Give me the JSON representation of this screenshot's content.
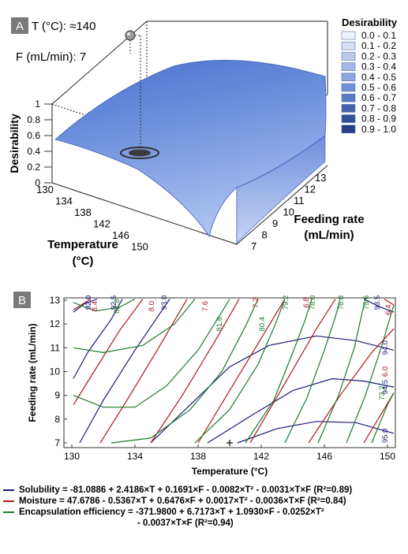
{
  "chart_data": [
    {
      "type": "surface",
      "panel_label": "A",
      "annotation": {
        "temp_label": "T (°C): ≈140",
        "feed_label": "F (mL/min): 7"
      },
      "xlabel": "Temperature\n(°C)",
      "ylabel": "Feeding rate\n(mL/min)",
      "zlabel": "Desirability",
      "x_ticks": [
        "130",
        "134",
        "138",
        "142",
        "146",
        "150"
      ],
      "y_ticks": [
        "7",
        "8",
        "9",
        "10",
        "11",
        "12",
        "13"
      ],
      "z_ticks": [
        "0",
        "0.2",
        "0.4",
        "0.6",
        "0.8",
        "1"
      ],
      "legend": {
        "title": "Desirability",
        "entries": [
          "0.0 - 0.1",
          "0.1 - 0.2",
          "0.2 - 0.3",
          "0.3 - 0.4",
          "0.4 - 0.5",
          "0.5 - 0.6",
          "0.6 - 0.7",
          "0.7 - 0.8",
          "0.8 - 0.9",
          "0.9 - 1.0"
        ],
        "colors": [
          "#eef2fb",
          "#d6e0f4",
          "#bccaee",
          "#a4b8e8",
          "#8ca4e0",
          "#7190d6",
          "#5a78c4",
          "#4662ae",
          "#334f97",
          "#243f82"
        ]
      },
      "optimum": {
        "x": 140,
        "y": 7
      }
    },
    {
      "type": "contour",
      "panel_label": "B",
      "xlabel": "Temperature (°C)",
      "ylabel": "Feeding rate (mL/min)",
      "xlim": [
        129.5,
        150.5
      ],
      "ylim": [
        6.8,
        13.1
      ],
      "x_ticks": [
        "130",
        "134",
        "138",
        "142",
        "146",
        "150"
      ],
      "y_ticks": [
        "7",
        "8",
        "9",
        "10",
        "11",
        "12",
        "13"
      ],
      "series_colors": {
        "solubility": "#1a1a78",
        "moisture": "#b0161c",
        "encapsulation": "#1c7a2a"
      },
      "labels": [
        {
          "text": "92.0",
          "x": 131.2,
          "y": 13.0,
          "series": "solubility"
        },
        {
          "text": "92.5",
          "x": 132.8,
          "y": 13.0,
          "series": "solubility"
        },
        {
          "text": "93.0",
          "x": 136.0,
          "y": 13.0,
          "series": "solubility"
        },
        {
          "text": "93.5",
          "x": 149.5,
          "y": 13.0,
          "series": "solubility"
        },
        {
          "text": "94.0",
          "x": 150.0,
          "y": 11.0,
          "series": "solubility"
        },
        {
          "text": "94.5",
          "x": 150.0,
          "y": 9.35,
          "series": "solubility"
        },
        {
          "text": "95.0",
          "x": 150.0,
          "y": 7.3,
          "series": "solubility"
        },
        {
          "text": "8.4",
          "x": 131.6,
          "y": 12.75,
          "series": "moisture"
        },
        {
          "text": "8.0",
          "x": 135.2,
          "y": 12.75,
          "series": "moisture"
        },
        {
          "text": "7.6",
          "x": 138.6,
          "y": 12.75,
          "series": "moisture"
        },
        {
          "text": "7.2",
          "x": 141.8,
          "y": 12.95,
          "series": "moisture"
        },
        {
          "text": "6.8",
          "x": 145.0,
          "y": 12.95,
          "series": "moisture"
        },
        {
          "text": "6.4",
          "x": 150.2,
          "y": 12.6,
          "series": "moisture"
        },
        {
          "text": "6.0",
          "x": 150.0,
          "y": 10.0,
          "series": "moisture"
        },
        {
          "text": "82.8",
          "x": 133.0,
          "y": 12.75,
          "series": "encapsulation"
        },
        {
          "text": "81.6",
          "x": 139.5,
          "y": 12.0,
          "series": "encapsulation"
        },
        {
          "text": "80.4",
          "x": 142.2,
          "y": 12.0,
          "series": "encapsulation"
        },
        {
          "text": "79.2",
          "x": 143.7,
          "y": 12.9,
          "series": "encapsulation"
        },
        {
          "text": "78.0",
          "x": 145.4,
          "y": 12.9,
          "series": "encapsulation"
        },
        {
          "text": "76.8",
          "x": 147.2,
          "y": 12.9,
          "series": "encapsulation"
        },
        {
          "text": "75.6",
          "x": 148.8,
          "y": 13.0,
          "series": "encapsulation"
        },
        {
          "text": "73.2",
          "x": 149.8,
          "y": 9.1,
          "series": "encapsulation"
        }
      ],
      "optimum": {
        "x": 140,
        "y": 7
      }
    }
  ],
  "equations": [
    {
      "text": "Solubility = -81.0886 + 2.4186×T + 0.1691×F - 0.0082×T² - 0.0031×T×F (R²=0.89)",
      "color": "#1a1a78"
    },
    {
      "text": "Moisture = 47.6786 - 0.5367×T + 0.6476×F + 0.0017×T² - 0.0036×T×F (R²=0.84)",
      "color": "#b0161c"
    },
    {
      "text": "Encapsulation efficiency = -371.9800 + 6.7173×T + 1.0930×F - 0.0252×T²",
      "color": "#1c7a2a"
    },
    {
      "text": "- 0.0037×T×F (R²=0.94)",
      "color": ""
    }
  ]
}
